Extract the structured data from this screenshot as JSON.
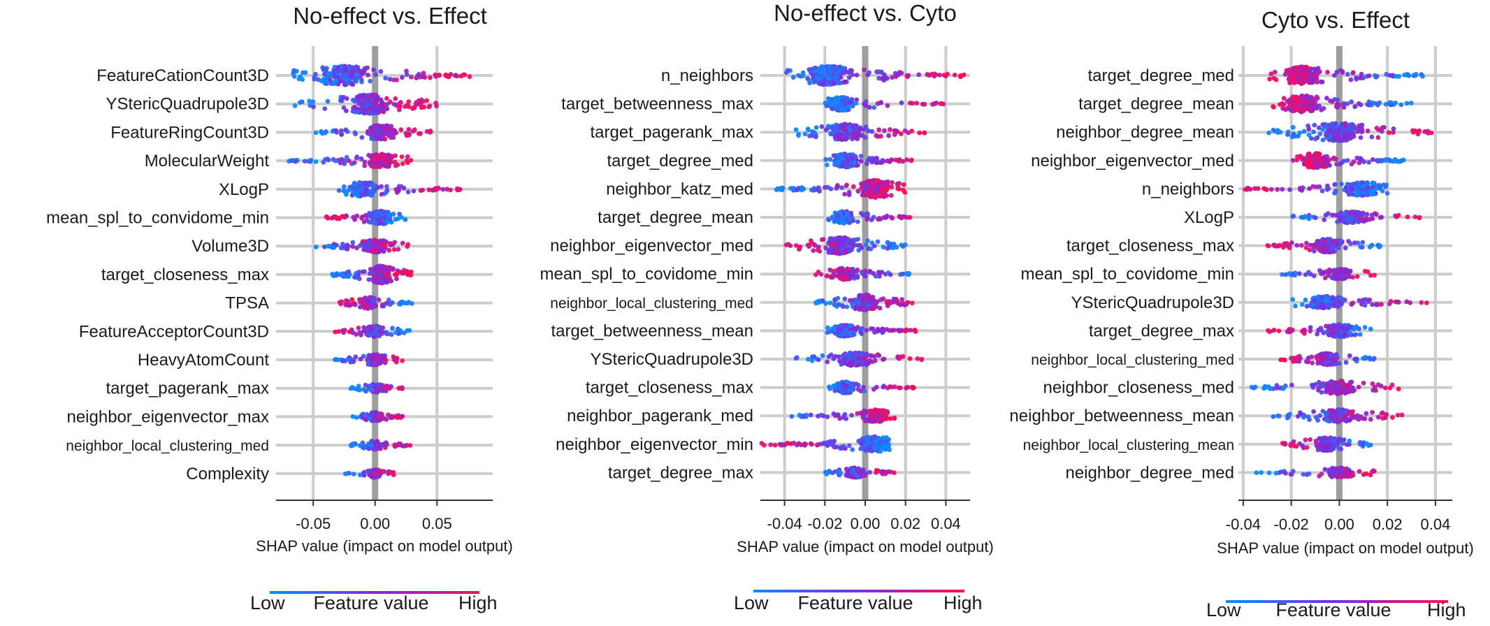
{
  "chart_data": [
    {
      "type": "scatter",
      "title": "No-effect vs. Effect",
      "xlabel": "SHAP value (impact on model output)",
      "xlim": [
        -0.08,
        0.095
      ],
      "xticks": [
        -0.05,
        0.0,
        0.05
      ],
      "xtick_labels": [
        "-0.05",
        "0.00",
        "0.05"
      ],
      "colorbar": {
        "low": "Low",
        "label": "Feature value",
        "high": "High"
      },
      "features": [
        {
          "name": "FeatureCationCount3D",
          "min": -0.068,
          "max": 0.085,
          "center": -0.025,
          "corr": 1,
          "density": 1.0
        },
        {
          "name": "YStericQuadrupole3D",
          "min": -0.07,
          "max": 0.055,
          "center": -0.005,
          "corr": 1,
          "density": 1.0
        },
        {
          "name": "FeatureRingCount3D",
          "min": -0.048,
          "max": 0.045,
          "center": 0.005,
          "corr": 1,
          "density": 0.75
        },
        {
          "name": "MolecularWeight",
          "min": -0.07,
          "max": 0.03,
          "center": 0.005,
          "corr": 1,
          "density": 0.7
        },
        {
          "name": "XLogP",
          "min": -0.03,
          "max": 0.07,
          "center": -0.01,
          "corr": 1,
          "density": 0.75
        },
        {
          "name": "mean_spl_to_convidome_min",
          "min": -0.04,
          "max": 0.025,
          "center": 0.005,
          "corr": -1,
          "density": 0.7
        },
        {
          "name": "Volume3D",
          "min": -0.05,
          "max": 0.03,
          "center": 0.0,
          "corr": 1,
          "density": 0.65
        },
        {
          "name": "target_closeness_max",
          "min": -0.035,
          "max": 0.03,
          "center": 0.005,
          "corr": 1,
          "density": 0.9
        },
        {
          "name": "TPSA",
          "min": -0.03,
          "max": 0.03,
          "center": -0.005,
          "corr": -1,
          "density": 0.6
        },
        {
          "name": "FeatureAcceptorCount3D",
          "min": -0.035,
          "max": 0.03,
          "center": 0.0,
          "corr": -1,
          "density": 0.55
        },
        {
          "name": "HeavyAtomCount",
          "min": -0.035,
          "max": 0.025,
          "center": 0.0,
          "corr": 1,
          "density": 0.55
        },
        {
          "name": "target_pagerank_max",
          "min": -0.02,
          "max": 0.025,
          "center": 0.0,
          "corr": 1,
          "density": 0.45
        },
        {
          "name": "neighbor_eigenvector_max",
          "min": -0.02,
          "max": 0.025,
          "center": 0.0,
          "corr": 1,
          "density": 0.45
        },
        {
          "name": "neighbor_local_clustering_med",
          "min": -0.02,
          "max": 0.03,
          "center": 0.0,
          "corr": 1,
          "density": 0.45
        },
        {
          "name": "Complexity",
          "min": -0.025,
          "max": 0.015,
          "center": 0.0,
          "corr": 1,
          "density": 0.4
        }
      ]
    },
    {
      "type": "scatter",
      "title": "No-effect vs. Cyto",
      "xlabel": "SHAP value (impact on model output)",
      "xlim": [
        -0.052,
        0.052
      ],
      "xticks": [
        -0.04,
        -0.02,
        0.0,
        0.02,
        0.04
      ],
      "xtick_labels": [
        "-0.04",
        "-0.02",
        "0.00",
        "0.02",
        "0.04"
      ],
      "colorbar": {
        "low": "Low",
        "label": "Feature value",
        "high": "High"
      },
      "features": [
        {
          "name": "n_neighbors",
          "min": -0.04,
          "max": 0.05,
          "center": -0.018,
          "corr": 1,
          "density": 1.0
        },
        {
          "name": "target_betweenness_max",
          "min": -0.02,
          "max": 0.04,
          "center": -0.012,
          "corr": 1,
          "density": 0.7
        },
        {
          "name": "target_pagerank_max",
          "min": -0.035,
          "max": 0.03,
          "center": -0.01,
          "corr": 1,
          "density": 0.85
        },
        {
          "name": "target_degree_med",
          "min": -0.02,
          "max": 0.025,
          "center": -0.01,
          "corr": 1,
          "density": 0.7
        },
        {
          "name": "neighbor_katz_med",
          "min": -0.045,
          "max": 0.02,
          "center": 0.005,
          "corr": 1,
          "density": 0.9
        },
        {
          "name": "target_degree_mean",
          "min": -0.02,
          "max": 0.025,
          "center": -0.01,
          "corr": 1,
          "density": 0.65
        },
        {
          "name": "neighbor_eigenvector_med",
          "min": -0.042,
          "max": 0.022,
          "center": -0.012,
          "corr": -1,
          "density": 0.85
        },
        {
          "name": "mean_spl_to_covidome_min",
          "min": -0.025,
          "max": 0.025,
          "center": -0.01,
          "corr": -1,
          "density": 0.6
        },
        {
          "name": "neighbor_local_clustering_med",
          "min": -0.025,
          "max": 0.025,
          "center": 0.0,
          "corr": 1,
          "density": 0.8
        },
        {
          "name": "target_betweenness_mean",
          "min": -0.02,
          "max": 0.025,
          "center": -0.01,
          "corr": 1,
          "density": 0.6
        },
        {
          "name": "YStericQuadrupole3D",
          "min": -0.035,
          "max": 0.03,
          "center": -0.005,
          "corr": 1,
          "density": 0.7
        },
        {
          "name": "target_closeness_max",
          "min": -0.018,
          "max": 0.025,
          "center": -0.01,
          "corr": 1,
          "density": 0.6
        },
        {
          "name": "neighbor_pagerank_med",
          "min": -0.038,
          "max": 0.015,
          "center": 0.005,
          "corr": 1,
          "density": 0.65
        },
        {
          "name": "neighbor_eigenvector_min",
          "min": -0.052,
          "max": 0.012,
          "center": 0.005,
          "corr": -1,
          "density": 0.8
        },
        {
          "name": "target_degree_max",
          "min": -0.02,
          "max": 0.015,
          "center": -0.005,
          "corr": 1,
          "density": 0.5
        }
      ]
    },
    {
      "type": "scatter",
      "title": "Cyto vs. Effect",
      "xlabel": "SHAP value (impact on model output)",
      "xlim": [
        -0.042,
        0.047
      ],
      "xticks": [
        -0.04,
        -0.02,
        0.0,
        0.02,
        0.04
      ],
      "xtick_labels": [
        "-0.04",
        "-0.02",
        "0.00",
        "0.02",
        "0.04"
      ],
      "colorbar": {
        "low": "Low",
        "label": "Feature value",
        "high": "High"
      },
      "features": [
        {
          "name": "target_degree_med",
          "min": -0.03,
          "max": 0.035,
          "center": -0.015,
          "corr": -1,
          "density": 0.9
        },
        {
          "name": "target_degree_mean",
          "min": -0.03,
          "max": 0.032,
          "center": -0.015,
          "corr": -1,
          "density": 0.85
        },
        {
          "name": "neighbor_degree_mean",
          "min": -0.03,
          "max": 0.042,
          "center": 0.0,
          "corr": 1,
          "density": 0.95
        },
        {
          "name": "neighbor_eigenvector_med",
          "min": -0.02,
          "max": 0.03,
          "center": -0.01,
          "corr": -1,
          "density": 0.75
        },
        {
          "name": "n_neighbors",
          "min": -0.04,
          "max": 0.02,
          "center": 0.01,
          "corr": -1,
          "density": 0.7
        },
        {
          "name": "XLogP",
          "min": -0.02,
          "max": 0.035,
          "center": 0.005,
          "corr": 1,
          "density": 0.6
        },
        {
          "name": "target_closeness_max",
          "min": -0.03,
          "max": 0.018,
          "center": -0.005,
          "corr": -1,
          "density": 0.7
        },
        {
          "name": "mean_spl_to_covidome_min",
          "min": -0.025,
          "max": 0.015,
          "center": 0.0,
          "corr": 1,
          "density": 0.55
        },
        {
          "name": "YStericQuadrupole3D",
          "min": -0.02,
          "max": 0.037,
          "center": -0.005,
          "corr": 1,
          "density": 0.65
        },
        {
          "name": "target_degree_max",
          "min": -0.03,
          "max": 0.015,
          "center": 0.0,
          "corr": -1,
          "density": 0.65
        },
        {
          "name": "neighbor_local_clustering_med",
          "min": -0.025,
          "max": 0.015,
          "center": -0.005,
          "corr": -1,
          "density": 0.6
        },
        {
          "name": "neighbor_closeness_med",
          "min": -0.038,
          "max": 0.025,
          "center": 0.0,
          "corr": 1,
          "density": 0.7
        },
        {
          "name": "neighbor_betweenness_mean",
          "min": -0.03,
          "max": 0.028,
          "center": 0.0,
          "corr": 1,
          "density": 0.65
        },
        {
          "name": "neighbor_local_clustering_mean",
          "min": -0.025,
          "max": 0.015,
          "center": -0.005,
          "corr": -1,
          "density": 0.7
        },
        {
          "name": "neighbor_degree_med",
          "min": -0.035,
          "max": 0.018,
          "center": 0.0,
          "corr": 1,
          "density": 0.5
        }
      ]
    }
  ]
}
